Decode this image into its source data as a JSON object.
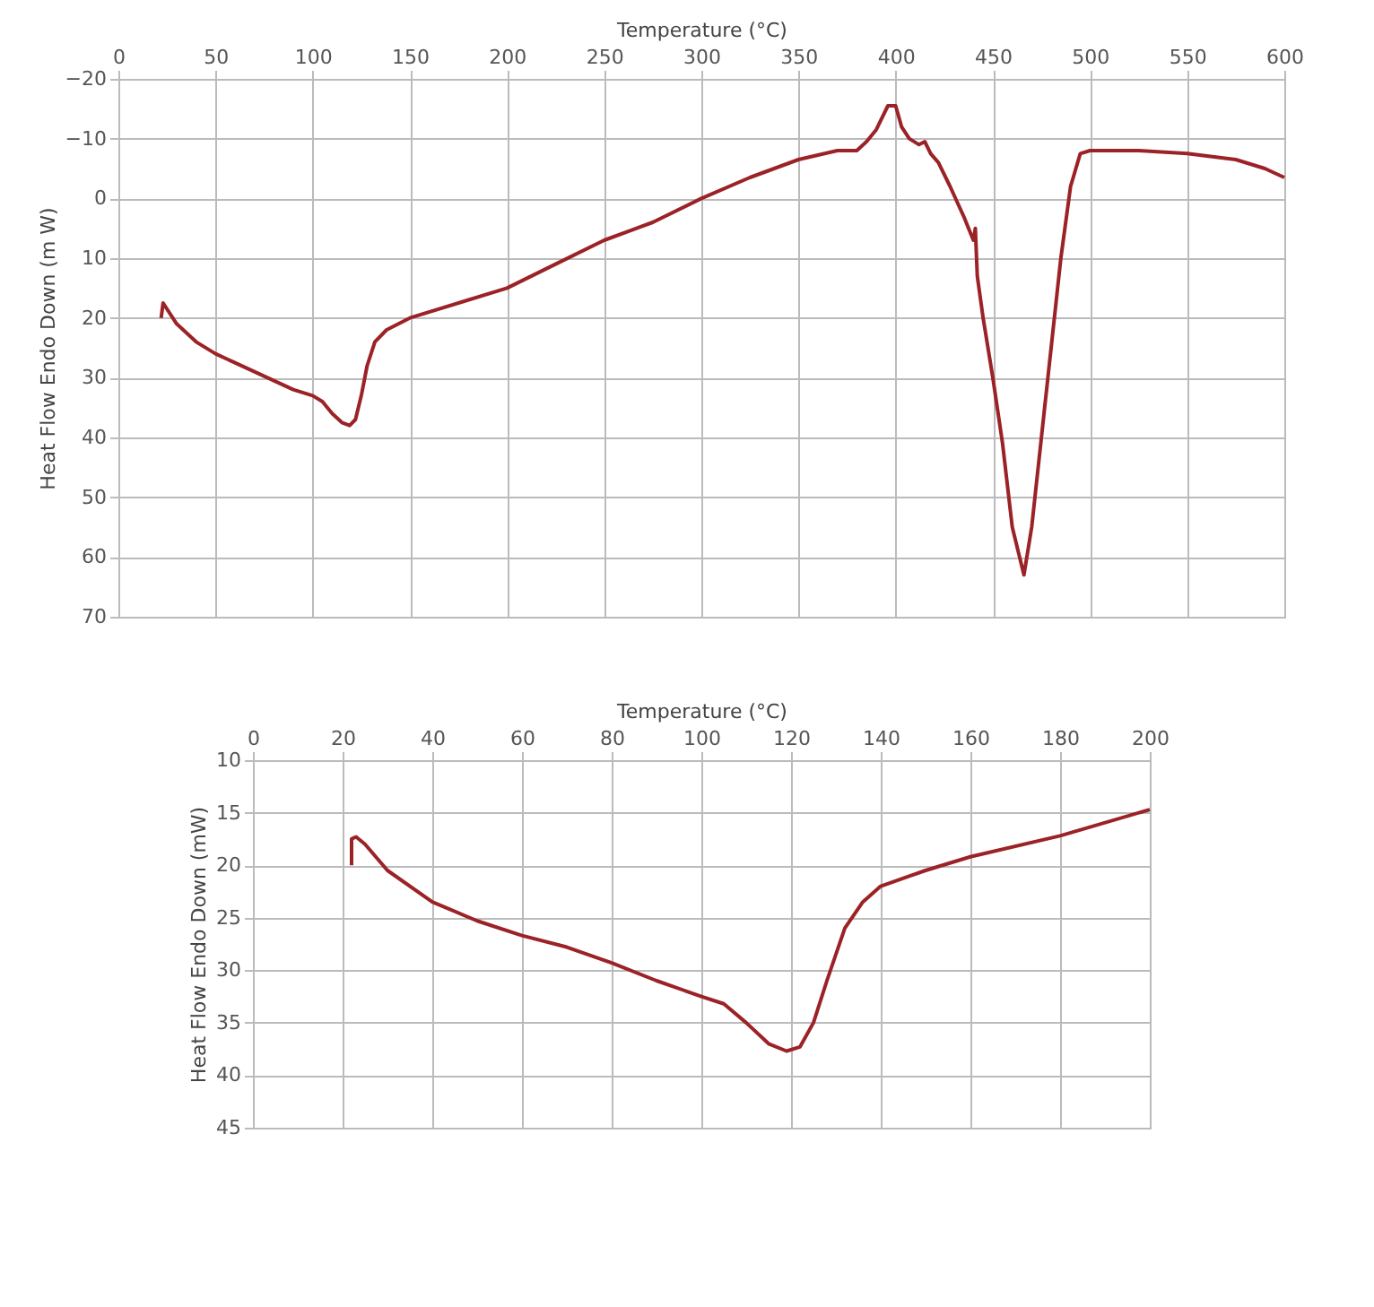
{
  "chart_data": [
    {
      "type": "line",
      "xlabel": "Temperature (°C)",
      "ylabel": "Heat Flow Endo Down (m W)",
      "xlim": [
        0,
        600
      ],
      "ylim": [
        70,
        -20
      ],
      "xticks": [
        0,
        50,
        100,
        150,
        200,
        250,
        300,
        350,
        400,
        450,
        500,
        550,
        600
      ],
      "yticks": [
        -20,
        -10,
        0,
        10,
        20,
        30,
        40,
        50,
        60,
        70
      ],
      "grid": true,
      "x": [
        22,
        23,
        30,
        40,
        50,
        60,
        70,
        80,
        90,
        100,
        105,
        110,
        115,
        119,
        122,
        125,
        128,
        132,
        138,
        150,
        175,
        200,
        225,
        250,
        275,
        300,
        325,
        350,
        370,
        380,
        385,
        390,
        396,
        400,
        403,
        407,
        412,
        415,
        418,
        422,
        428,
        435,
        440,
        441,
        442,
        445,
        450,
        455,
        460,
        466,
        470,
        475,
        480,
        485,
        490,
        495,
        500,
        525,
        550,
        575,
        590,
        600
      ],
      "series": [
        {
          "color": "#9b2226",
          "values": [
            20,
            17.5,
            21,
            24,
            26,
            27.5,
            29,
            30.5,
            32,
            33,
            34,
            36,
            37.5,
            38,
            37,
            33,
            28,
            24,
            22,
            20,
            17.5,
            15,
            11,
            7,
            4,
            0,
            -3.5,
            -6.5,
            -8,
            -8,
            -9.5,
            -11.5,
            -15.5,
            -15.5,
            -12,
            -10,
            -9,
            -9.5,
            -7.5,
            -6,
            -2,
            3,
            7,
            5,
            13,
            20,
            30,
            41,
            55,
            63,
            55,
            40,
            25,
            10,
            -2,
            -7.5,
            -8,
            -8,
            -7.5,
            -6.5,
            -5,
            -3.5
          ]
        }
      ]
    },
    {
      "type": "line",
      "xlabel": "Temperature (°C)",
      "ylabel": "Heat Flow Endo Down (mW)",
      "xlim": [
        0,
        200
      ],
      "ylim": [
        45,
        10
      ],
      "xticks": [
        0,
        20,
        40,
        60,
        80,
        100,
        120,
        140,
        160,
        180,
        200
      ],
      "yticks": [
        10,
        15,
        20,
        25,
        30,
        35,
        40,
        45
      ],
      "grid": true,
      "x": [
        22,
        22,
        23,
        25,
        30,
        40,
        50,
        60,
        70,
        80,
        90,
        100,
        105,
        110,
        115,
        119,
        122,
        125,
        128,
        132,
        136,
        140,
        150,
        160,
        180,
        200
      ],
      "series": [
        {
          "color": "#9b2226",
          "values": [
            20,
            17.5,
            17.3,
            18,
            20.5,
            23.5,
            25.3,
            26.7,
            27.8,
            29.3,
            31,
            32.5,
            33.2,
            35,
            37,
            37.7,
            37.3,
            35,
            31,
            26,
            23.5,
            22,
            20.5,
            19.2,
            17.2,
            14.7
          ]
        }
      ]
    }
  ]
}
